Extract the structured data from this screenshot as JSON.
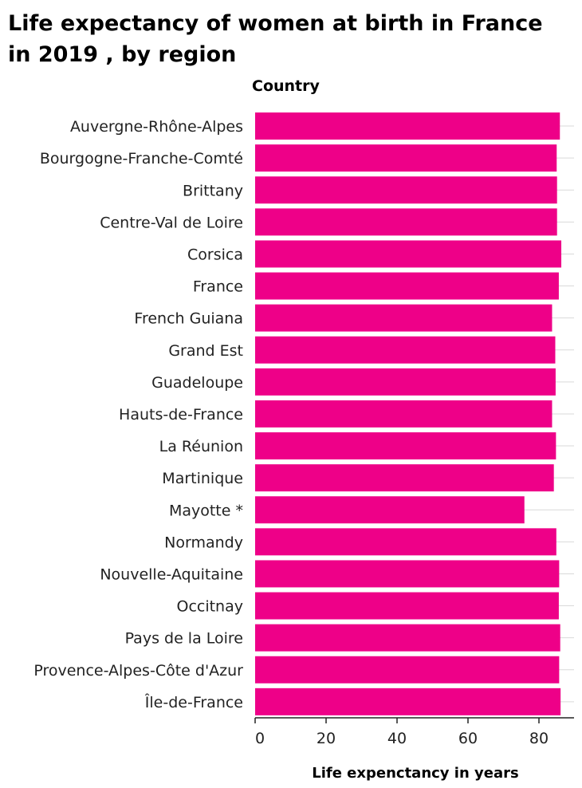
{
  "chart_data": {
    "type": "bar",
    "orientation": "horizontal",
    "title": "Life expectancy of women at birth in France in 2019 , by region",
    "title_lines": [
      "Life expectancy of women at birth in France",
      "in 2019 , by region"
    ],
    "ylabel": "Country",
    "xlabel": "Life expenctancy in years",
    "xlim": [
      0,
      90
    ],
    "xticks": [
      0,
      20,
      40,
      60,
      80
    ],
    "grid": "horizontal",
    "bar_color": "#ee0088",
    "categories": [
      "Auvergne-Rhône-Alpes",
      "Bourgogne-Franche-Comté",
      "Brittany",
      "Centre-Val de Loire",
      "Corsica",
      "France",
      "French Guiana",
      "Grand Est",
      "Guadeloupe",
      "Hauts-de-France",
      "La Réunion",
      "Martinique",
      "Mayotte *",
      "Normandy",
      "Nouvelle-Aquitaine",
      "Occitnay",
      "Pays de la Loire",
      "Provence-Alpes-Côte d'Azur",
      "Île-de-France"
    ],
    "values": [
      85.9,
      85.0,
      85.1,
      85.1,
      86.3,
      85.6,
      83.7,
      84.6,
      84.7,
      83.7,
      84.8,
      84.2,
      75.9,
      84.9,
      85.7,
      85.6,
      86.0,
      85.7,
      86.1
    ]
  }
}
